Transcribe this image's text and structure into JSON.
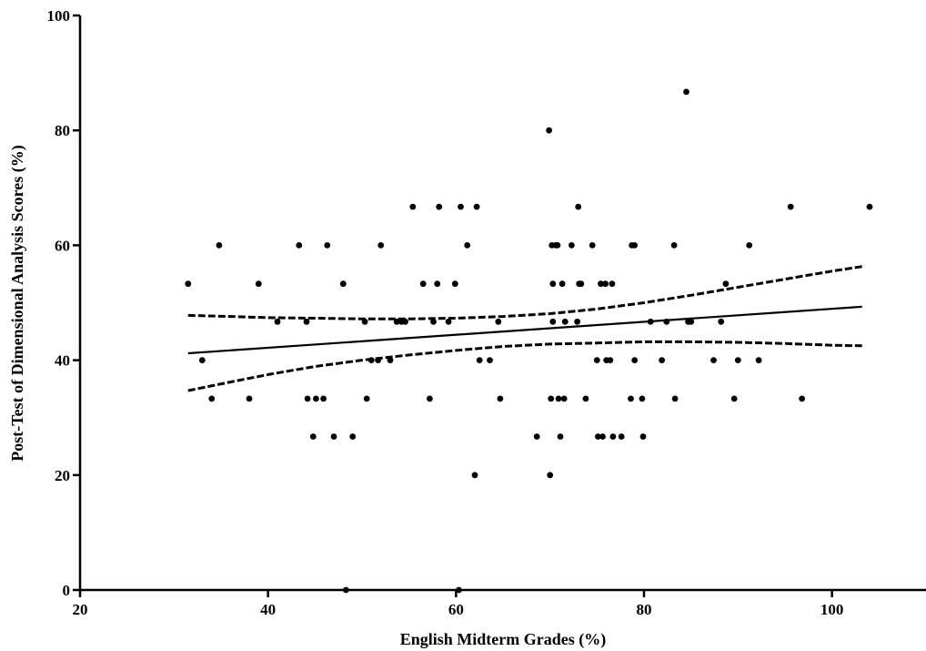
{
  "chart_data": {
    "type": "scatter",
    "xlabel": "English Midterm  Grades (%)",
    "ylabel": "Post-Test of Dimensional Analysis Scores (%)",
    "xlim": [
      20,
      110
    ],
    "ylim": [
      0,
      100
    ],
    "xticks": [
      20,
      40,
      60,
      80,
      100
    ],
    "yticks": [
      0,
      20,
      40,
      60,
      80,
      100
    ],
    "grid": false,
    "points": [
      [
        31.5,
        53.3
      ],
      [
        33,
        40
      ],
      [
        34,
        33.3
      ],
      [
        34.8,
        60
      ],
      [
        38,
        33.3
      ],
      [
        39,
        53.3
      ],
      [
        41,
        46.7
      ],
      [
        43.3,
        60
      ],
      [
        44.1,
        46.7
      ],
      [
        44.2,
        33.3
      ],
      [
        44.8,
        26.7
      ],
      [
        45.1,
        33.3
      ],
      [
        45.9,
        33.3
      ],
      [
        46.3,
        60
      ],
      [
        47,
        26.7
      ],
      [
        48,
        53.3
      ],
      [
        48.3,
        0
      ],
      [
        49,
        26.7
      ],
      [
        50.3,
        46.7
      ],
      [
        50.5,
        33.3
      ],
      [
        51,
        40
      ],
      [
        51.7,
        40
      ],
      [
        52,
        60
      ],
      [
        53,
        40
      ],
      [
        53.7,
        46.7
      ],
      [
        54.2,
        46.7
      ],
      [
        54.6,
        46.7
      ],
      [
        55.4,
        66.7
      ],
      [
        56.5,
        53.3
      ],
      [
        57.2,
        33.3
      ],
      [
        57.6,
        46.7
      ],
      [
        58,
        53.3
      ],
      [
        58.2,
        66.7
      ],
      [
        59.2,
        46.7
      ],
      [
        59.9,
        53.3
      ],
      [
        60.3,
        0
      ],
      [
        60.5,
        66.7
      ],
      [
        61.2,
        60
      ],
      [
        62,
        20
      ],
      [
        62.2,
        66.7
      ],
      [
        62.5,
        40
      ],
      [
        63.6,
        40
      ],
      [
        64.5,
        46.7
      ],
      [
        64.7,
        33.3
      ],
      [
        68.6,
        26.7
      ],
      [
        69.9,
        80
      ],
      [
        70,
        20
      ],
      [
        70.1,
        33.3
      ],
      [
        70.2,
        60
      ],
      [
        70.3,
        46.7
      ],
      [
        70.3,
        53.3
      ],
      [
        70.6,
        60
      ],
      [
        70.8,
        60
      ],
      [
        70.9,
        33.3
      ],
      [
        71.1,
        26.7
      ],
      [
        71.3,
        53.3
      ],
      [
        71.5,
        33.3
      ],
      [
        71.6,
        46.7
      ],
      [
        72.3,
        60
      ],
      [
        72.9,
        46.7
      ],
      [
        73,
        66.7
      ],
      [
        73.1,
        53.3
      ],
      [
        73.3,
        53.3
      ],
      [
        73.8,
        33.3
      ],
      [
        74.5,
        60
      ],
      [
        75,
        40
      ],
      [
        75.1,
        26.7
      ],
      [
        75.4,
        53.3
      ],
      [
        75.6,
        26.7
      ],
      [
        75.9,
        53.3
      ],
      [
        76,
        40
      ],
      [
        76.4,
        40
      ],
      [
        76.6,
        53.3
      ],
      [
        76.7,
        26.7
      ],
      [
        77.6,
        26.7
      ],
      [
        78.6,
        33.3
      ],
      [
        78.7,
        60
      ],
      [
        79,
        60
      ],
      [
        79,
        40
      ],
      [
        79.8,
        33.3
      ],
      [
        79.9,
        26.7
      ],
      [
        80.7,
        46.7
      ],
      [
        81.9,
        40
      ],
      [
        82.4,
        46.7
      ],
      [
        83.2,
        60
      ],
      [
        83.3,
        33.3
      ],
      [
        84.5,
        86.7
      ],
      [
        84.7,
        46.7
      ],
      [
        85,
        46.7
      ],
      [
        87.4,
        40
      ],
      [
        88.2,
        46.7
      ],
      [
        88.7,
        53.3
      ],
      [
        89.6,
        33.3
      ],
      [
        90,
        40
      ],
      [
        91.2,
        60
      ],
      [
        92.2,
        40
      ],
      [
        95.6,
        66.7
      ],
      [
        96.8,
        33.3
      ],
      [
        104,
        66.7
      ]
    ],
    "fit_line": {
      "x": [
        31.5,
        103.2
      ],
      "y": [
        41.2,
        49.3
      ]
    },
    "ci_upper": {
      "x": [
        31.5,
        36,
        40,
        45,
        50,
        55,
        60,
        65,
        70,
        75,
        80,
        85,
        90,
        95,
        100,
        103.2
      ],
      "y": [
        47.8,
        47.6,
        47.4,
        47.3,
        47.2,
        47.2,
        47.3,
        47.6,
        48.1,
        48.9,
        50.0,
        51.3,
        52.7,
        54.1,
        55.5,
        56.3
      ]
    },
    "ci_lower": {
      "x": [
        31.5,
        36,
        40,
        45,
        50,
        55,
        60,
        65,
        70,
        75,
        80,
        85,
        90,
        95,
        100,
        103.2
      ],
      "y": [
        34.7,
        36.2,
        37.5,
        38.9,
        40.0,
        40.9,
        41.7,
        42.4,
        42.8,
        43.0,
        43.2,
        43.2,
        43.1,
        42.9,
        42.6,
        42.5
      ]
    }
  }
}
